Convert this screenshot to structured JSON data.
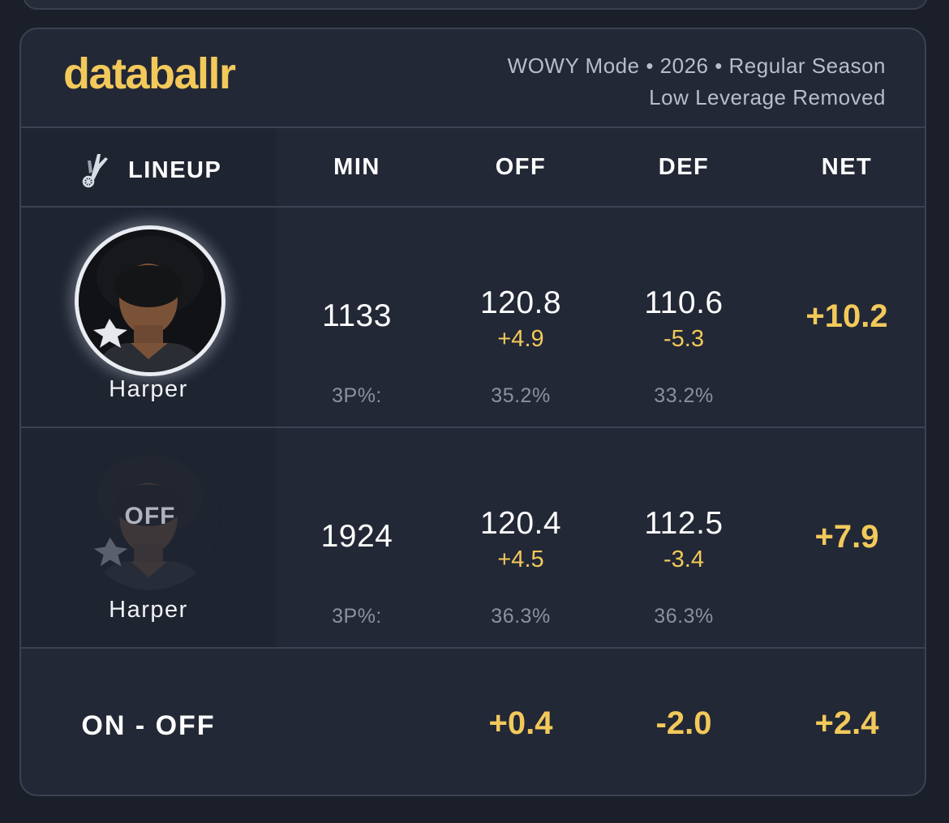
{
  "brand": {
    "name": "databallr"
  },
  "filters": {
    "line1": "WOWY Mode • 2026 • Regular Season",
    "line2": "Low Leverage Removed"
  },
  "columns": {
    "lineup": "LINEUP",
    "min": "MIN",
    "off": "OFF",
    "def": "DEF",
    "net": "NET"
  },
  "team_icon": "spurs-logo-icon",
  "rows": [
    {
      "player": "Harper",
      "status": "on",
      "min": "1133",
      "off": "120.8",
      "off_delta": "+4.9",
      "def": "110.6",
      "def_delta": "-5.3",
      "net": "+10.2",
      "threep_label": "3P%:",
      "threep_off": "35.2%",
      "threep_def": "33.2%"
    },
    {
      "player": "Harper",
      "status": "off",
      "off_label": "OFF",
      "min": "1924",
      "off": "120.4",
      "off_delta": "+4.5",
      "def": "112.5",
      "def_delta": "-3.4",
      "net": "+7.9",
      "threep_label": "3P%:",
      "threep_off": "36.3%",
      "threep_def": "36.3%"
    }
  ],
  "summary": {
    "label": "ON - OFF",
    "off": "+0.4",
    "def": "-2.0",
    "net": "+2.4"
  },
  "colors": {
    "accent": "#f2c95a",
    "background": "#1b1f2a",
    "card": "#232836",
    "border": "#3b4252"
  }
}
